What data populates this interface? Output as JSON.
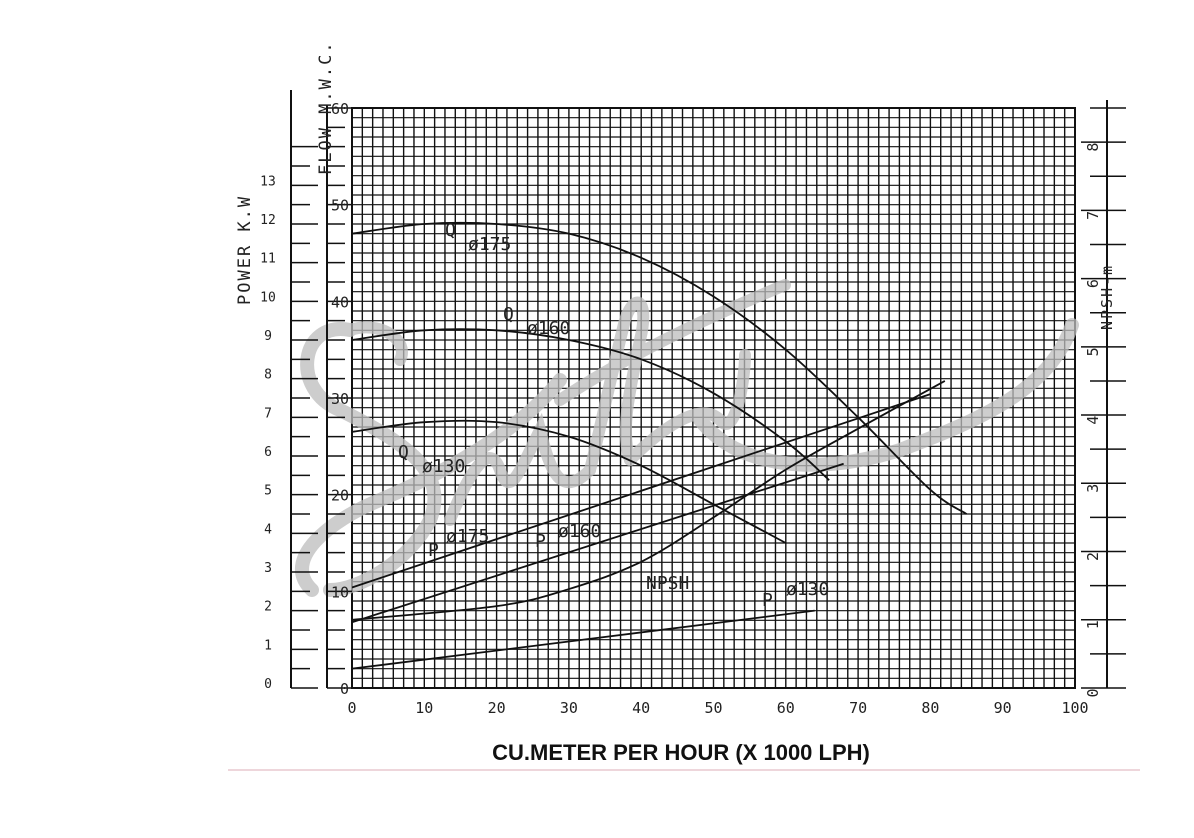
{
  "chart_data": {
    "type": "line",
    "xlabel": "CU.METER PER HOUR (X 1000 LPH)",
    "x_ticks": [
      "0",
      "10",
      "20",
      "30",
      "40",
      "50",
      "60",
      "70",
      "80",
      "90",
      "100"
    ],
    "xlim": [
      0,
      100
    ],
    "head_axis": {
      "label": "FLOW M.W.C.",
      "ticks": [
        "0",
        "10",
        "20",
        "30",
        "40",
        "50",
        "60"
      ],
      "ylim": [
        0,
        60
      ]
    },
    "power_axis": {
      "label": "POWER K.W",
      "ticks": [
        "0",
        "1",
        "2",
        "3",
        "4",
        "5",
        "6",
        "7",
        "8",
        "9",
        "10",
        "11",
        "12",
        "13"
      ],
      "ylim": [
        0,
        15
      ]
    },
    "npsh_axis": {
      "label": "NPSH-m",
      "ticks": [
        "0",
        "1",
        "2",
        "3",
        "4",
        "5",
        "6",
        "7",
        "8"
      ],
      "ylim": [
        0,
        8.5
      ]
    },
    "series": [
      {
        "name": "Q Ø175",
        "label_q": "Q",
        "label_d": "ø175",
        "axis": "head",
        "x": [
          0,
          10,
          20,
          30,
          40,
          50,
          60,
          70,
          80,
          85
        ],
        "y": [
          47,
          48,
          48,
          47,
          44.5,
          40.5,
          35,
          28,
          20.5,
          18
        ]
      },
      {
        "name": "Q Ø160",
        "label_q": "Q",
        "label_d": "ø160",
        "axis": "head",
        "x": [
          0,
          10,
          20,
          30,
          40,
          50,
          60,
          66
        ],
        "y": [
          36,
          37,
          37,
          36,
          34,
          30.5,
          25.5,
          21.5
        ]
      },
      {
        "name": "Q Ø130",
        "label_q": "Q",
        "label_d": "ø130",
        "axis": "head",
        "x": [
          0,
          10,
          20,
          30,
          40,
          50,
          60
        ],
        "y": [
          26.5,
          27.5,
          27.5,
          26,
          23,
          19,
          15
        ]
      },
      {
        "name": "P Ø175",
        "label_q": "P",
        "label_d": "ø175",
        "axis": "power",
        "x": [
          0,
          80
        ],
        "y": [
          2.6,
          7.6
        ]
      },
      {
        "name": "P Ø160",
        "label_q": "P",
        "label_d": "ø160",
        "axis": "power",
        "x": [
          0,
          68
        ],
        "y": [
          1.7,
          5.8
        ]
      },
      {
        "name": "P Ø130",
        "label_q": "P",
        "label_d": "ø130",
        "axis": "power",
        "x": [
          0,
          64
        ],
        "y": [
          0.5,
          2
        ]
      },
      {
        "name": "NPSH",
        "label_q": "",
        "label_d": "NPSH",
        "axis": "npsh",
        "x": [
          0,
          20,
          30,
          40,
          50,
          60,
          70,
          82
        ],
        "y": [
          1,
          1.2,
          1.45,
          1.85,
          2.5,
          3.2,
          3.8,
          4.5
        ]
      }
    ],
    "watermark": "Swastik",
    "grid": true
  }
}
